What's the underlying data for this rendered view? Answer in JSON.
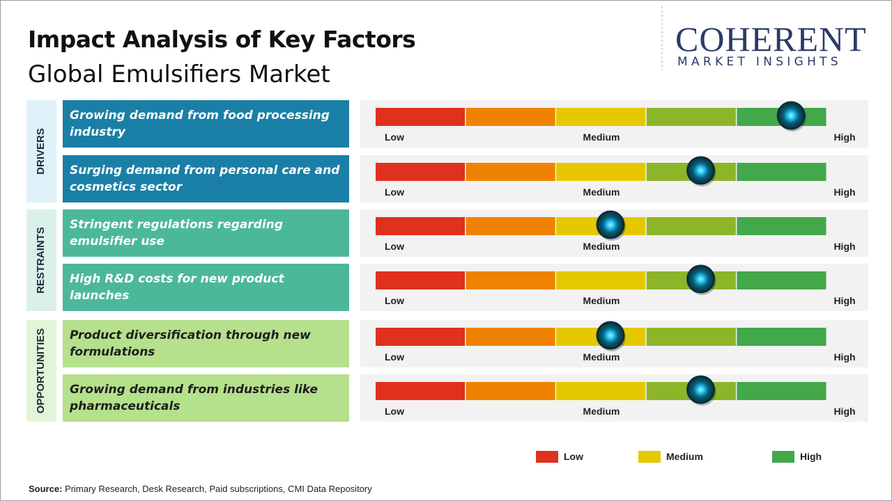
{
  "header": {
    "title": "Impact Analysis of Key Factors",
    "subtitle": "Global Emulsifiers Market"
  },
  "logo": {
    "name": "COHERENT",
    "tagline": "MARKET INSIGHTS"
  },
  "scale": {
    "labels": [
      "Low",
      "Medium",
      "High"
    ],
    "segment_colors": [
      "#e0301e",
      "#ef8200",
      "#e6c800",
      "#8db52a",
      "#43a84a"
    ],
    "range": [
      0,
      5
    ]
  },
  "groups": [
    {
      "label": "DRIVERS",
      "color": "#1a7fa6",
      "light": "#dff2fa",
      "text_color": "#ffffff",
      "factors": [
        {
          "text": "Growing demand from food processing industry",
          "impact": 4.6
        },
        {
          "text": "Surging demand from personal care and cosmetics sector",
          "impact": 3.6
        }
      ]
    },
    {
      "label": "RESTRAINTS",
      "color": "#4cb89a",
      "light": "#dcf0ea",
      "text_color": "#ffffff",
      "factors": [
        {
          "text": "Stringent regulations regarding emulsifier use",
          "impact": 2.6
        },
        {
          "text": "High R&D costs for new product launches",
          "impact": 3.6
        }
      ]
    },
    {
      "label": "OPPORTUNITIES",
      "color": "#b5e08c",
      "light": "#e3f5d8",
      "text_color": "#1e1e1e",
      "factors": [
        {
          "text": "Product diversification through new formulations",
          "impact": 2.6
        },
        {
          "text": "Growing demand from industries like pharmaceuticals",
          "impact": 3.6
        }
      ]
    }
  ],
  "legend": [
    {
      "label": "Low",
      "color": "#e0301e"
    },
    {
      "label": "Medium",
      "color": "#e6c800"
    },
    {
      "label": "High",
      "color": "#43a84a"
    }
  ],
  "source": {
    "label": "Source:",
    "text": "Primary Research, Desk Research, Paid subscriptions, CMI Data Repository"
  }
}
